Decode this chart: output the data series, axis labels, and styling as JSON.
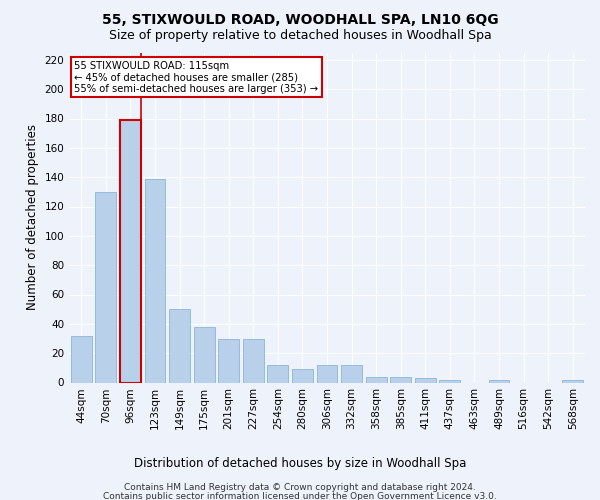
{
  "title": "55, STIXWOULD ROAD, WOODHALL SPA, LN10 6QG",
  "subtitle": "Size of property relative to detached houses in Woodhall Spa",
  "xlabel": "Distribution of detached houses by size in Woodhall Spa",
  "ylabel": "Number of detached properties",
  "footnote1": "Contains HM Land Registry data © Crown copyright and database right 2024.",
  "footnote2": "Contains public sector information licensed under the Open Government Licence v3.0.",
  "bar_labels": [
    "44sqm",
    "70sqm",
    "96sqm",
    "123sqm",
    "149sqm",
    "175sqm",
    "201sqm",
    "227sqm",
    "254sqm",
    "280sqm",
    "306sqm",
    "332sqm",
    "358sqm",
    "385sqm",
    "411sqm",
    "437sqm",
    "463sqm",
    "489sqm",
    "516sqm",
    "542sqm",
    "568sqm"
  ],
  "bar_values": [
    32,
    130,
    179,
    139,
    50,
    38,
    30,
    30,
    12,
    9,
    12,
    12,
    4,
    4,
    3,
    2,
    0,
    2,
    0,
    0,
    2
  ],
  "bar_color": "#b8d0ea",
  "bar_edge_color": "#7aafd4",
  "bar_highlight_index": 2,
  "bar_highlight_edge_color": "#cc0000",
  "annotation_text": "55 STIXWOULD ROAD: 115sqm\n← 45% of detached houses are smaller (285)\n55% of semi-detached houses are larger (353) →",
  "annotation_box_color": "#ffffff",
  "annotation_border_color": "#cc0000",
  "vline_color": "#cc0000",
  "ylim": [
    0,
    225
  ],
  "yticks": [
    0,
    20,
    40,
    60,
    80,
    100,
    120,
    140,
    160,
    180,
    200,
    220
  ],
  "background_color": "#eef2fa",
  "grid_color": "#ffffff",
  "title_fontsize": 10,
  "subtitle_fontsize": 9,
  "tick_fontsize": 7.5,
  "ylabel_fontsize": 8.5,
  "xlabel_fontsize": 8.5,
  "footnote_fontsize": 6.5
}
